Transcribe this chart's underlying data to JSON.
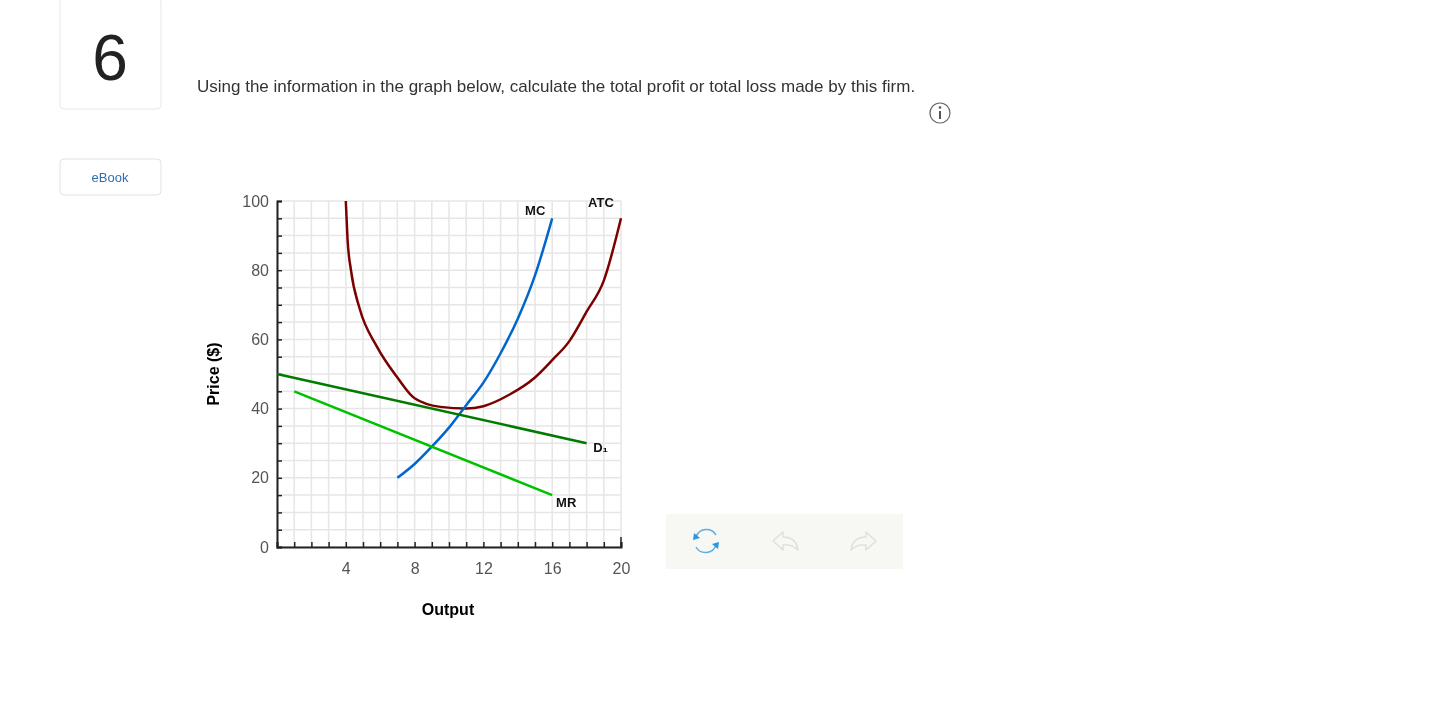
{
  "chart_data": {
    "type": "line",
    "title": "Using the information in the graph below, calculate the total profit or total loss made by this firm.",
    "annotations": [
      "6",
      "eBook"
    ],
    "xlabel": "Output",
    "ylabel": "Price ($)",
    "xlim": [
      0,
      20
    ],
    "ylim": [
      0,
      100
    ],
    "xticks": [
      {
        "value": 0,
        "label": null
      },
      {
        "value": 1,
        "label": null
      },
      {
        "value": 2,
        "label": null
      },
      {
        "value": 3,
        "label": null
      },
      4,
      {
        "value": 5,
        "label": null
      },
      {
        "value": 6,
        "label": null
      },
      {
        "value": 7,
        "label": null
      },
      8,
      {
        "value": 9,
        "label": null
      },
      {
        "value": 10,
        "label": null
      },
      {
        "value": 11,
        "label": null
      },
      12,
      {
        "value": 13,
        "label": null
      },
      {
        "value": 14,
        "label": null
      },
      {
        "value": 15,
        "label": null
      },
      16,
      {
        "value": 17,
        "label": null
      },
      {
        "value": 18,
        "label": null
      },
      {
        "value": 19,
        "label": null
      },
      20
    ],
    "yticks": [
      0,
      {
        "value": 5,
        "label": null
      },
      {
        "value": 10,
        "label": null
      },
      {
        "value": 15,
        "label": null
      },
      20,
      {
        "value": 25,
        "label": null
      },
      {
        "value": 30,
        "label": null
      },
      {
        "value": 35,
        "label": null
      },
      40,
      {
        "value": 45,
        "label": null
      },
      {
        "value": 50,
        "label": null
      },
      {
        "value": 55,
        "label": null
      },
      60,
      {
        "value": 65,
        "label": null
      },
      {
        "value": 70,
        "label": null
      },
      {
        "value": 75,
        "label": null
      },
      80,
      {
        "value": 85,
        "label": null
      },
      {
        "value": 90,
        "label": null
      },
      {
        "value": 95,
        "label": null
      },
      100
    ],
    "grid": true,
    "marker": "none",
    "line_style": "solid",
    "series": [
      {
        "name": "ATC",
        "color": "#7b0000",
        "x": [
          4,
          4.1,
          4.3,
          4.8,
          5.8,
          7,
          8,
          9.5,
          11,
          12,
          13.5,
          15,
          16,
          17,
          18,
          19,
          20
        ],
        "values": [
          100,
          89,
          80,
          69,
          58,
          49,
          43,
          40.5,
          40,
          40.7,
          44,
          49,
          54,
          59.5,
          68,
          77,
          95
        ]
      },
      {
        "name": "MC",
        "color": "#0066cc",
        "x": [
          7,
          8,
          9,
          10,
          11,
          12,
          13,
          14,
          15,
          16
        ],
        "values": [
          20,
          24,
          29,
          34.5,
          41,
          47.5,
          56,
          66,
          78.5,
          95
        ]
      },
      {
        "name": "D₁",
        "color": "#007a00",
        "x": [
          0,
          18
        ],
        "values": [
          50,
          30
        ]
      },
      {
        "name": "MR",
        "color": "#00c000",
        "x": [
          1,
          16
        ],
        "values": [
          45,
          15
        ]
      }
    ]
  }
}
